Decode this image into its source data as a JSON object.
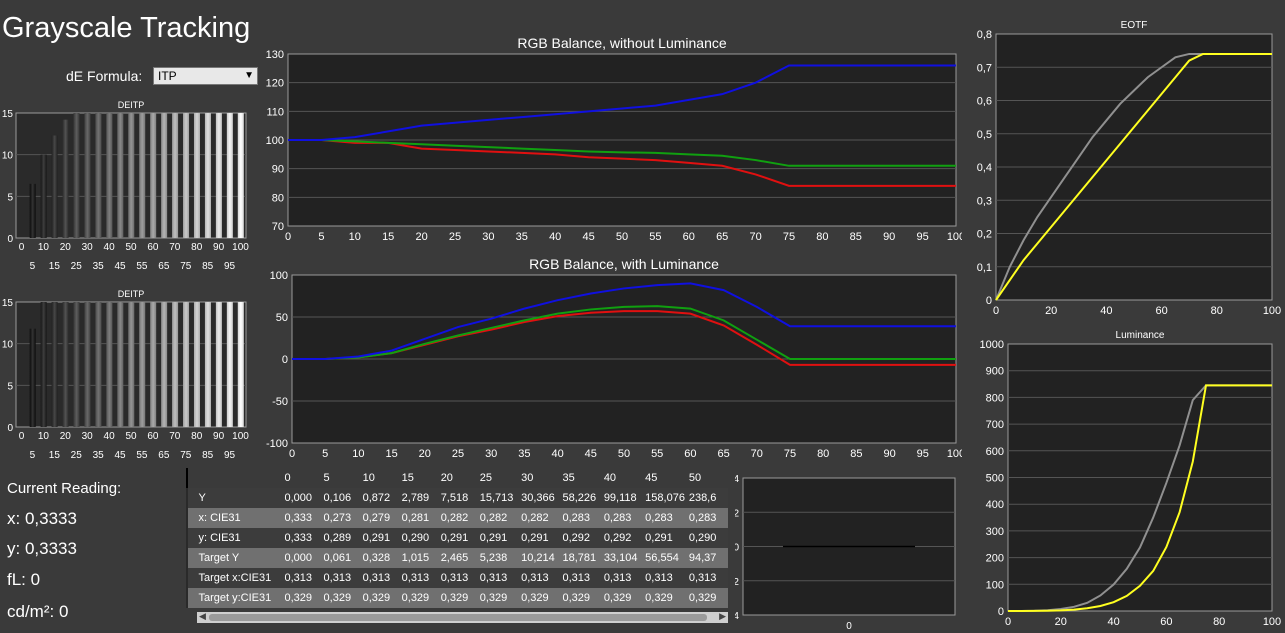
{
  "app": {
    "title": "Grayscale Tracking"
  },
  "formula": {
    "label": "dE Formula:",
    "selected": "ITP"
  },
  "de_charts": [
    {
      "title": "DEITP",
      "yticks": [
        "0",
        "5",
        "10",
        "15"
      ],
      "xticks_top": [
        "0",
        "10",
        "20",
        "30",
        "40",
        "50",
        "60",
        "70",
        "80",
        "90",
        "100"
      ],
      "xticks_bottom": [
        "5",
        "15",
        "25",
        "35",
        "45",
        "55",
        "65",
        "75",
        "85",
        "95"
      ],
      "values": [
        0,
        6.5,
        10,
        12.3,
        14.2,
        15,
        15,
        15,
        15,
        15,
        15,
        15,
        15,
        15,
        15,
        15,
        15,
        15,
        15,
        15,
        15
      ]
    },
    {
      "title": "DEITP",
      "yticks": [
        "0",
        "5",
        "10",
        "15"
      ],
      "xticks_top": [
        "0",
        "10",
        "20",
        "30",
        "40",
        "50",
        "60",
        "70",
        "80",
        "90",
        "100"
      ],
      "xticks_bottom": [
        "5",
        "15",
        "25",
        "35",
        "45",
        "55",
        "65",
        "75",
        "85",
        "95"
      ],
      "values": [
        0,
        11.8,
        15,
        15,
        15,
        15,
        15,
        15,
        15,
        15,
        15,
        15,
        15,
        15,
        15,
        15,
        15,
        15,
        15,
        15,
        15
      ]
    }
  ],
  "current_reading": {
    "title": "Current Reading:",
    "x": "x: 0,3333",
    "y": "y: 0,3333",
    "fl": "fL: 0",
    "cdm2": "cd/m²: 0"
  },
  "table": {
    "columns": [
      "0",
      "5",
      "10",
      "15",
      "20",
      "25",
      "30",
      "35",
      "40",
      "45",
      "50"
    ],
    "rows": [
      {
        "label": "Y",
        "values": [
          "0,000",
          "0,106",
          "0,872",
          "2,789",
          "7,518",
          "15,713",
          "30,366",
          "58,226",
          "99,118",
          "158,076",
          "238,6"
        ]
      },
      {
        "label": "x: CIE31",
        "values": [
          "0,333",
          "0,273",
          "0,279",
          "0,281",
          "0,282",
          "0,282",
          "0,282",
          "0,283",
          "0,283",
          "0,283",
          "0,283"
        ]
      },
      {
        "label": "y: CIE31",
        "values": [
          "0,333",
          "0,289",
          "0,291",
          "0,290",
          "0,291",
          "0,291",
          "0,291",
          "0,292",
          "0,292",
          "0,291",
          "0,290"
        ]
      },
      {
        "label": "Target Y",
        "values": [
          "0,000",
          "0,061",
          "0,328",
          "1,015",
          "2,465",
          "5,238",
          "10,214",
          "18,781",
          "33,104",
          "56,554",
          "94,37"
        ]
      },
      {
        "label": "Target x:CIE31",
        "values": [
          "0,313",
          "0,313",
          "0,313",
          "0,313",
          "0,313",
          "0,313",
          "0,313",
          "0,313",
          "0,313",
          "0,313",
          "0,313"
        ]
      },
      {
        "label": "Target y:CIE31",
        "values": [
          "0,329",
          "0,329",
          "0,329",
          "0,329",
          "0,329",
          "0,329",
          "0,329",
          "0,329",
          "0,329",
          "0,329",
          "0,329"
        ]
      }
    ]
  },
  "colors": {
    "red": "#e01010",
    "green": "#10a010",
    "blue": "#1010e0",
    "gray": "#909090",
    "yellow": "#ffff20",
    "plot_bg": "#222222",
    "grid": "#555555"
  },
  "chart_data": [
    {
      "type": "line",
      "title": "RGB Balance, without Luminance",
      "x": [
        0,
        5,
        10,
        15,
        20,
        25,
        30,
        35,
        40,
        45,
        50,
        55,
        60,
        65,
        70,
        75,
        80,
        85,
        90,
        95,
        100
      ],
      "xlim": [
        0,
        100
      ],
      "ylim": [
        70,
        130
      ],
      "yticks": [
        70,
        80,
        90,
        100,
        110,
        120,
        130
      ],
      "series": [
        {
          "color": "red",
          "values": [
            100,
            100,
            99,
            99,
            97,
            96.5,
            96,
            95.5,
            95,
            94,
            93.5,
            93,
            92,
            91,
            88,
            84,
            84,
            84,
            84,
            84,
            84
          ]
        },
        {
          "color": "green",
          "values": [
            100,
            100,
            99.5,
            99,
            98.5,
            98,
            97.5,
            97,
            96.5,
            96,
            95.7,
            95.5,
            95,
            94.5,
            93,
            91,
            91,
            91,
            91,
            91,
            91
          ]
        },
        {
          "color": "blue",
          "values": [
            100,
            100,
            101,
            103,
            105,
            106,
            107,
            108,
            109,
            110,
            111,
            112,
            114,
            116,
            120,
            126,
            126,
            126,
            126,
            126,
            126
          ]
        }
      ]
    },
    {
      "type": "line",
      "title": "RGB Balance, with Luminance",
      "x": [
        0,
        5,
        10,
        15,
        20,
        25,
        30,
        35,
        40,
        45,
        50,
        55,
        60,
        65,
        70,
        75,
        80,
        85,
        90,
        95,
        100
      ],
      "xlim": [
        0,
        100
      ],
      "ylim": [
        -100,
        100
      ],
      "yticks": [
        -100,
        -50,
        0,
        50,
        100
      ],
      "series": [
        {
          "color": "red",
          "values": [
            0,
            0,
            2,
            7,
            17,
            27,
            35,
            44,
            51,
            55,
            57,
            57,
            54,
            40,
            17,
            -7,
            -7,
            -7,
            -7,
            -7,
            -7
          ]
        },
        {
          "color": "green",
          "values": [
            0,
            0,
            2,
            7,
            18,
            28,
            37,
            46,
            54,
            59,
            62,
            63,
            60,
            46,
            23,
            0,
            0,
            0,
            0,
            0,
            0
          ]
        },
        {
          "color": "blue",
          "values": [
            0,
            0,
            3,
            10,
            24,
            38,
            48,
            60,
            70,
            78,
            84,
            88,
            90,
            82,
            62,
            39,
            39,
            39,
            39,
            39,
            39
          ]
        }
      ]
    },
    {
      "type": "line",
      "title": "EOTF",
      "x": [
        0,
        5,
        10,
        15,
        20,
        25,
        30,
        35,
        40,
        45,
        50,
        55,
        60,
        65,
        70,
        75,
        80,
        85,
        90,
        95,
        100
      ],
      "xlim": [
        0,
        100
      ],
      "ylim": [
        0,
        0.8
      ],
      "yticks": [
        0,
        0.1,
        0.2,
        0.3,
        0.4,
        0.5,
        0.6,
        0.7,
        0.8
      ],
      "yticklabels": [
        "0",
        "0,1",
        "0,2",
        "0,3",
        "0,4",
        "0,5",
        "0,6",
        "0,7",
        "0,8"
      ],
      "series": [
        {
          "color": "gray",
          "values": [
            0,
            0.1,
            0.18,
            0.25,
            0.31,
            0.37,
            0.43,
            0.49,
            0.54,
            0.59,
            0.63,
            0.67,
            0.7,
            0.73,
            0.74,
            0.74,
            0.74,
            0.74,
            0.74,
            0.74,
            0.74
          ]
        },
        {
          "color": "yellow",
          "values": [
            0,
            0.06,
            0.12,
            0.17,
            0.22,
            0.27,
            0.32,
            0.37,
            0.42,
            0.47,
            0.52,
            0.57,
            0.62,
            0.67,
            0.72,
            0.74,
            0.74,
            0.74,
            0.74,
            0.74,
            0.74
          ]
        }
      ]
    },
    {
      "type": "line",
      "title": "Luminance",
      "x": [
        0,
        5,
        10,
        15,
        20,
        25,
        30,
        35,
        40,
        45,
        50,
        55,
        60,
        65,
        70,
        75,
        80,
        85,
        90,
        95,
        100
      ],
      "xlim": [
        0,
        100
      ],
      "ylim": [
        0,
        1000
      ],
      "yticks": [
        0,
        100,
        200,
        300,
        400,
        500,
        600,
        700,
        800,
        900,
        1000
      ],
      "series": [
        {
          "color": "gray",
          "values": [
            0,
            0.1,
            0.9,
            2.8,
            7.5,
            15.7,
            30.4,
            58.2,
            99.1,
            158,
            238,
            350,
            480,
            620,
            790,
            845,
            845,
            845,
            845,
            845,
            845
          ]
        },
        {
          "color": "yellow",
          "values": [
            0,
            0.06,
            0.3,
            1,
            2.5,
            5.2,
            10.2,
            18.8,
            33.1,
            56.6,
            94.4,
            150,
            240,
            370,
            560,
            845,
            845,
            845,
            845,
            845,
            845
          ]
        }
      ]
    },
    {
      "type": "line",
      "x": [
        0
      ],
      "xlim": [
        -1,
        1
      ],
      "ylim": [
        -4,
        4
      ],
      "yticks": [
        -4,
        -2,
        0,
        2,
        4
      ],
      "xticks": [
        0
      ],
      "series": [
        {
          "color": "black",
          "values": [
            0
          ]
        }
      ]
    }
  ]
}
